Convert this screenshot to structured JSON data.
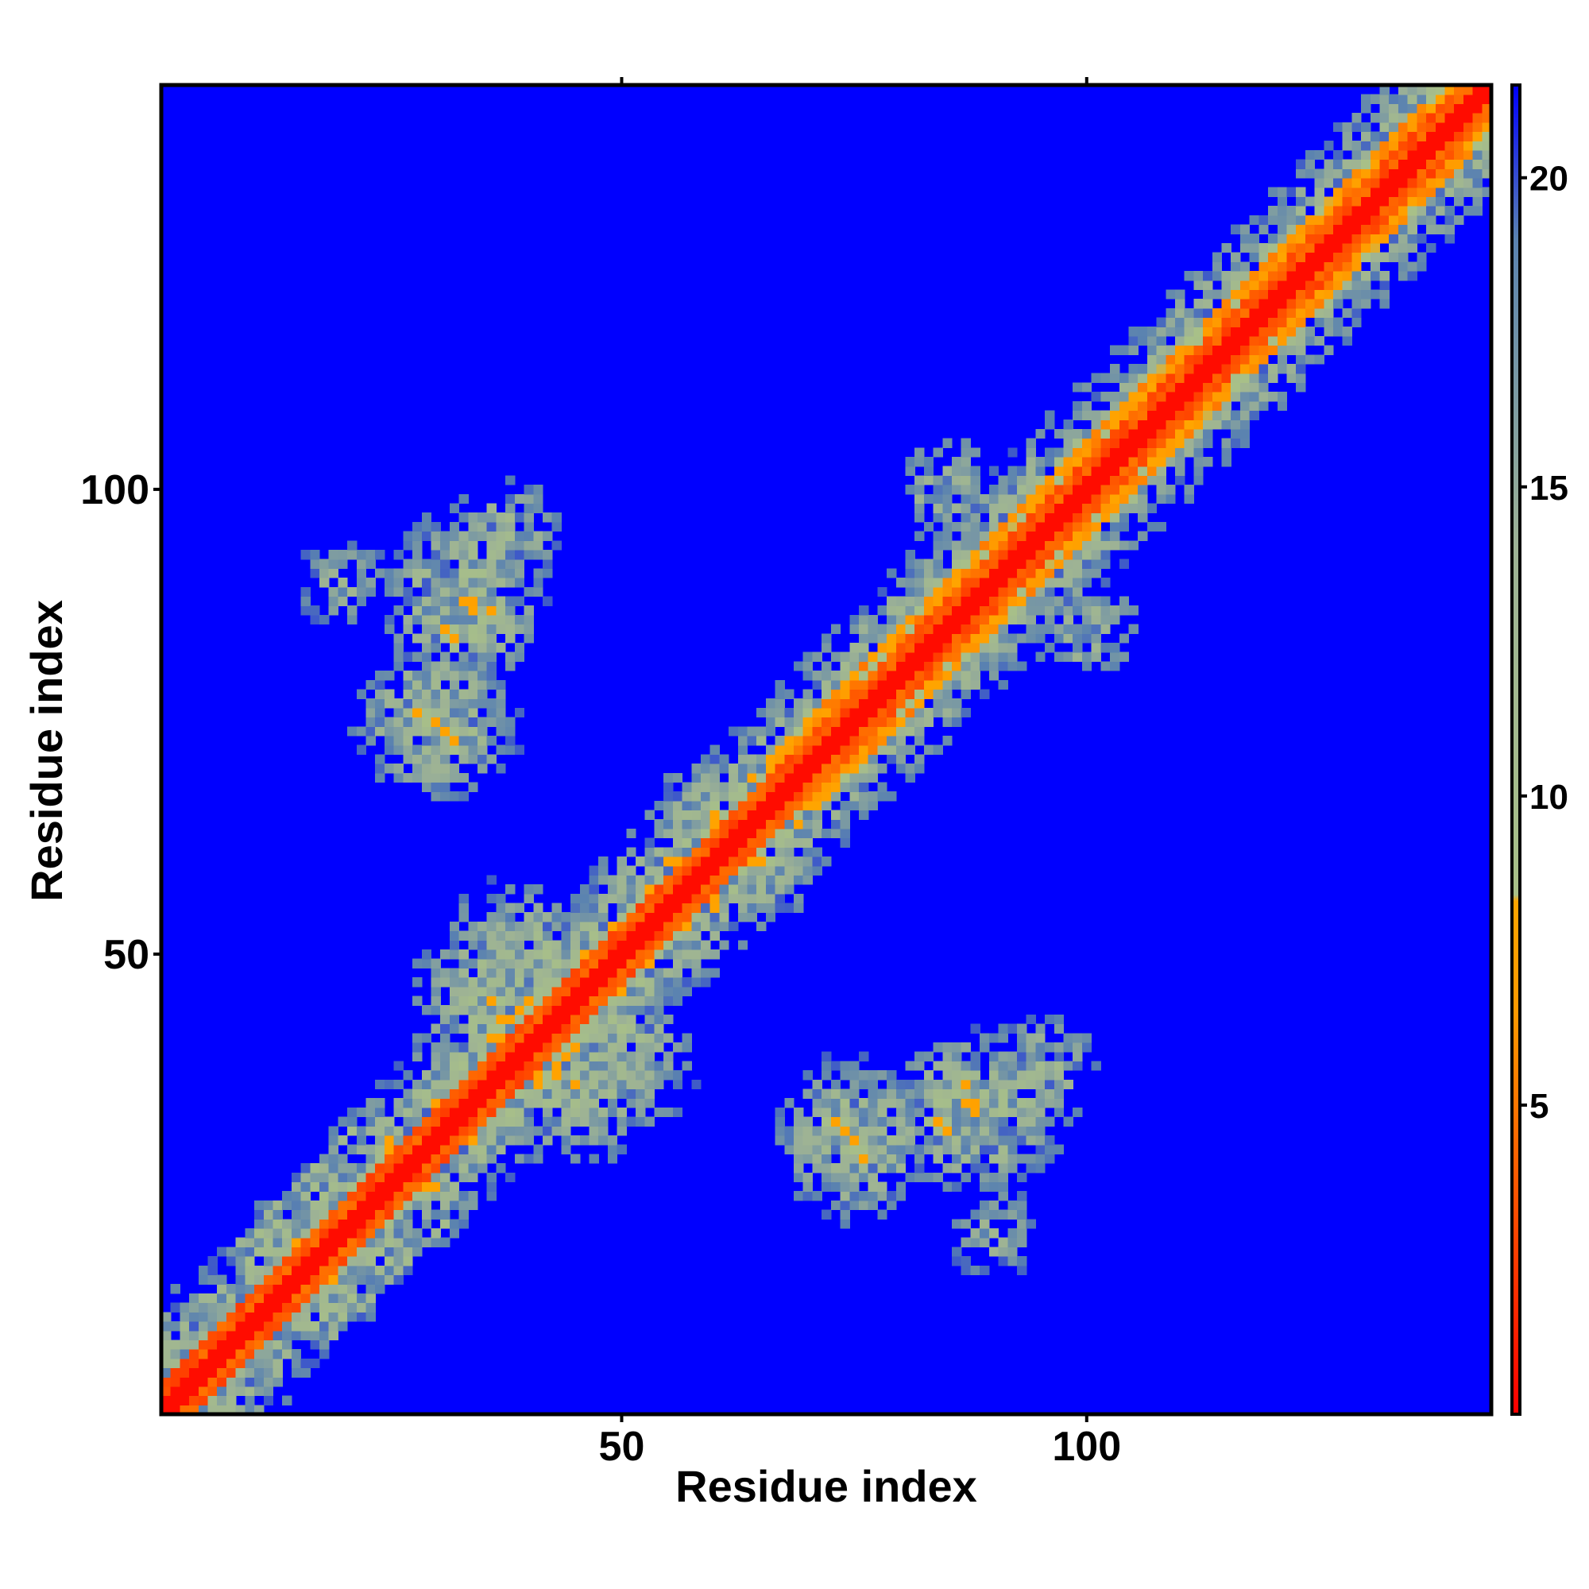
{
  "chart_data": {
    "type": "heatmap",
    "title": "",
    "xlabel": "Residue index",
    "ylabel": "Residue index",
    "xlim": [
      1,
      143
    ],
    "ylim": [
      1,
      143
    ],
    "x_ticks": [
      50,
      100
    ],
    "y_ticks": [
      50,
      100
    ],
    "colorbar": {
      "ticks": [
        5,
        10,
        15,
        20
      ],
      "range": [
        0,
        21.5
      ],
      "stops": [
        {
          "value": 0,
          "color": "#ff0000"
        },
        {
          "value": 6.5,
          "color": "#ff9900"
        },
        {
          "value": 8.3,
          "color": "#ffa500"
        },
        {
          "value": 8.4,
          "color": "#a8c088"
        },
        {
          "value": 14,
          "color": "#9db295"
        },
        {
          "value": 19,
          "color": "#5a82b0"
        },
        {
          "value": 21.5,
          "color": "#0000ff"
        }
      ],
      "cutoff_color": "#0000ff"
    },
    "matrix": "symmetric residue–residue distance map; diagonal ≈ 0, contacts shown up to ~20, far pairs saturated blue",
    "contact_regions": [
      {
        "i": [
          1,
          143
        ],
        "j": [
          1,
          143
        ],
        "kind": "diagonal band"
      },
      {
        "i": [
          55,
          70
        ],
        "j": [
          55,
          70
        ],
        "kind": "helical contact cluster"
      },
      {
        "i": [
          20,
          60
        ],
        "j": [
          25,
          65
        ],
        "kind": "core contact region"
      },
      {
        "i": [
          20,
          55
        ],
        "j": [
          70,
          110
        ],
        "kind": "upper-left branch"
      },
      {
        "i": [
          70,
          110
        ],
        "j": [
          20,
          55
        ],
        "kind": "lower-right branch"
      },
      {
        "i": [
          70,
          115
        ],
        "j": [
          70,
          115
        ],
        "kind": "C-terminal helix packing"
      }
    ]
  },
  "colors": {
    "far": "#0000ff",
    "close": "#ff0000",
    "mid": "#ffa500",
    "contact": "#a8c088",
    "frame": "#000000"
  }
}
